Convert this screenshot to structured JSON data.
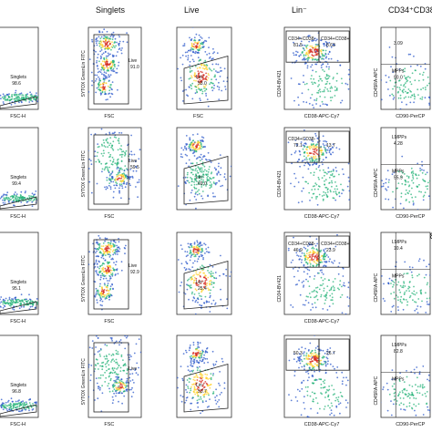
{
  "chart_data": {
    "type": "scatter",
    "subtype": "flow-cytometry-density-plot-grid",
    "rows": 4,
    "columns": 5,
    "grid": false,
    "colors": {
      "dense_high": "#d62a1e",
      "dense_mid": "#ffd12a",
      "dense_low": "#27b37a",
      "sparse": "#2a57c9",
      "gate": "#222222"
    },
    "column_titles": [
      "",
      "Singlets",
      "Live",
      "Lin⁻",
      "CD34⁺CD38⁻"
    ],
    "panels": [
      {
        "row": 0,
        "col": 0,
        "xlabel": "FSC-H",
        "ylabel": "",
        "gates": [
          {
            "label": "Singlets",
            "value": "98.6"
          }
        ]
      },
      {
        "row": 0,
        "col": 1,
        "xlabel": "FSC",
        "ylabel": "SYTOX GreenLin FITC",
        "gates": [
          {
            "label": "Live",
            "value": "91.0"
          }
        ]
      },
      {
        "row": 0,
        "col": 2,
        "xlabel": "FSC",
        "ylabel": "",
        "gates": [
          {
            "label": "Lin⁻",
            "value": "53.0"
          }
        ]
      },
      {
        "row": 0,
        "col": 3,
        "xlabel": "CD38-APC-Cy7",
        "ylabel": "CD34-BV421",
        "gates": [
          {
            "label": "CD34+CD38-",
            "value": "81.5"
          },
          {
            "label": "CD34+CD38+",
            "value": "8.63"
          }
        ]
      },
      {
        "row": 0,
        "col": 4,
        "xlabel": "CD90-PerCP",
        "ylabel": "CD45RA-APC",
        "gates": [
          {
            "label": "",
            "value": "3.09"
          },
          {
            "label": "MPPs",
            "value": "90.0"
          }
        ]
      },
      {
        "row": 1,
        "col": 0,
        "xlabel": "FSC-H",
        "ylabel": "",
        "gates": [
          {
            "label": "Singlets",
            "value": "99.4"
          }
        ]
      },
      {
        "row": 1,
        "col": 1,
        "xlabel": "FSC",
        "ylabel": "SYTOX GreenLin FITC",
        "gates": [
          {
            "label": "Live",
            "value": "59.5"
          }
        ]
      },
      {
        "row": 1,
        "col": 2,
        "xlabel": "",
        "ylabel": "",
        "gates": [
          {
            "label": "Lin⁻",
            "value": "69.0"
          }
        ]
      },
      {
        "row": 1,
        "col": 3,
        "xlabel": "CD38-APC-Cy7",
        "ylabel": "CD34-BV421",
        "gates": [
          {
            "label": "CD34+CD38-",
            "value": "72.1"
          },
          {
            "label": "",
            "value": "13.7"
          }
        ]
      },
      {
        "row": 1,
        "col": 4,
        "xlabel": "CD90-PerCP",
        "ylabel": "CD45RA-APC",
        "gates": [
          {
            "label": "LMPPs",
            "value": "4.28"
          },
          {
            "label": "MPPs",
            "value": "55.9"
          }
        ]
      },
      {
        "row": 2,
        "col": 0,
        "xlabel": "FSC-H",
        "ylabel": "",
        "gates": [
          {
            "label": "Singlets",
            "value": "95.1"
          }
        ]
      },
      {
        "row": 2,
        "col": 1,
        "xlabel": "FSC",
        "ylabel": "SYTOX GreenLin FITC",
        "gates": [
          {
            "label": "Live",
            "value": "92.9"
          }
        ]
      },
      {
        "row": 2,
        "col": 2,
        "xlabel": "",
        "ylabel": "",
        "gates": [
          {
            "label": "Lin⁻",
            "value": "25.4"
          }
        ]
      },
      {
        "row": 2,
        "col": 3,
        "xlabel": "CD38-APC-Cy7",
        "ylabel": "CD34-BV421",
        "gates": [
          {
            "label": "CD34+CD38-",
            "value": "46.9"
          },
          {
            "label": "CD34+CD38+",
            "value": "23.9"
          }
        ]
      },
      {
        "row": 2,
        "col": 4,
        "xlabel": "",
        "ylabel": "CD45RA-APC",
        "gates": [
          {
            "label": "LMPPs",
            "value": "10.4"
          },
          {
            "label": "MPPs",
            "value": ""
          }
        ]
      },
      {
        "row": 3,
        "col": 0,
        "xlabel": "FSC-H",
        "ylabel": "",
        "gates": [
          {
            "label": "Singlets",
            "value": "96.8"
          }
        ]
      },
      {
        "row": 3,
        "col": 1,
        "xlabel": "FSC",
        "ylabel": "SYTOX GreenLin FITC",
        "gates": [
          {
            "label": "Live",
            "value": ""
          }
        ]
      },
      {
        "row": 3,
        "col": 2,
        "xlabel": "",
        "ylabel": "",
        "gates": [
          {
            "label": "Lin⁻",
            "value": "53.7"
          }
        ]
      },
      {
        "row": 3,
        "col": 3,
        "xlabel": "CD38-APC-Cy7",
        "ylabel": "",
        "gates": [
          {
            "label": "",
            "value": "50.3"
          },
          {
            "label": "",
            "value": "26.7"
          }
        ]
      },
      {
        "row": 3,
        "col": 4,
        "xlabel": "CD90-PerCP",
        "ylabel": "CD45RA-APC",
        "gates": [
          {
            "label": "LMPPs",
            "value": "82.8"
          },
          {
            "label": "MPPs",
            "value": ""
          }
        ]
      }
    ]
  }
}
